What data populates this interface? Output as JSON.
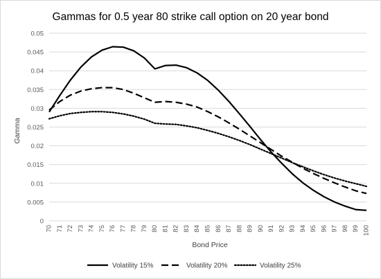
{
  "chart_data": {
    "type": "line",
    "title": "Gammas for 0.5 year 80 strike call option on 20 year bond",
    "xlabel": "Bond Price",
    "ylabel": "Gamma",
    "x": [
      70,
      71,
      72,
      73,
      74,
      75,
      76,
      77,
      78,
      79,
      80,
      81,
      82,
      83,
      84,
      85,
      86,
      87,
      88,
      89,
      90,
      91,
      92,
      93,
      94,
      95,
      96,
      97,
      98,
      99,
      100
    ],
    "x_tick_labels": [
      "70",
      "71",
      "72",
      "73",
      "74",
      "75",
      "76",
      "77",
      "78",
      "79",
      "80",
      "81",
      "82",
      "83",
      "84",
      "85",
      "86",
      "87",
      "88",
      "89",
      "90",
      "91",
      "92",
      "93",
      "94",
      "95",
      "96",
      "97",
      "98",
      "99",
      "100"
    ],
    "xlim": [
      70,
      100
    ],
    "ylim": [
      0,
      0.05
    ],
    "y_ticks": [
      0,
      0.005,
      0.01,
      0.015,
      0.02,
      0.025,
      0.03,
      0.035,
      0.04,
      0.045,
      0.05
    ],
    "y_tick_labels": [
      "0",
      "0.005",
      "0.01",
      "0.015",
      "0.02",
      "0.025",
      "0.03",
      "0.035",
      "0.04",
      "0.045",
      "0.05"
    ],
    "grid": "horizontal",
    "legend_position": "bottom",
    "series": [
      {
        "name": "Volatility 15%",
        "style": "solid",
        "color": "#000000",
        "values": [
          0.029,
          0.0334,
          0.0375,
          0.041,
          0.0437,
          0.0455,
          0.0464,
          0.0463,
          0.0453,
          0.0434,
          0.0405,
          0.0414,
          0.0415,
          0.0408,
          0.0394,
          0.0374,
          0.0348,
          0.0318,
          0.0285,
          0.0251,
          0.0216,
          0.0183,
          0.0153,
          0.0125,
          0.0101,
          0.0081,
          0.0064,
          0.005,
          0.0039,
          0.003,
          0.0028
        ]
      },
      {
        "name": "Volatility 20%",
        "style": "dashed",
        "color": "#000000",
        "values": [
          0.0295,
          0.0318,
          0.0335,
          0.0346,
          0.0352,
          0.0355,
          0.0355,
          0.035,
          0.034,
          0.0328,
          0.0316,
          0.0318,
          0.0316,
          0.0311,
          0.0303,
          0.0291,
          0.0277,
          0.0261,
          0.0244,
          0.0226,
          0.0208,
          0.019,
          0.0172,
          0.0156,
          0.014,
          0.0126,
          0.0113,
          0.0101,
          0.009,
          0.008,
          0.0073
        ]
      },
      {
        "name": "Volatility 25%",
        "style": "dotted",
        "color": "#000000",
        "values": [
          0.0272,
          0.028,
          0.0286,
          0.0289,
          0.0291,
          0.0291,
          0.0289,
          0.0285,
          0.0279,
          0.0271,
          0.026,
          0.0258,
          0.0257,
          0.0253,
          0.0248,
          0.0241,
          0.0233,
          0.0224,
          0.0214,
          0.0203,
          0.0191,
          0.0179,
          0.0167,
          0.0155,
          0.0144,
          0.0133,
          0.0123,
          0.0114,
          0.0106,
          0.0099,
          0.0092
        ]
      }
    ]
  }
}
